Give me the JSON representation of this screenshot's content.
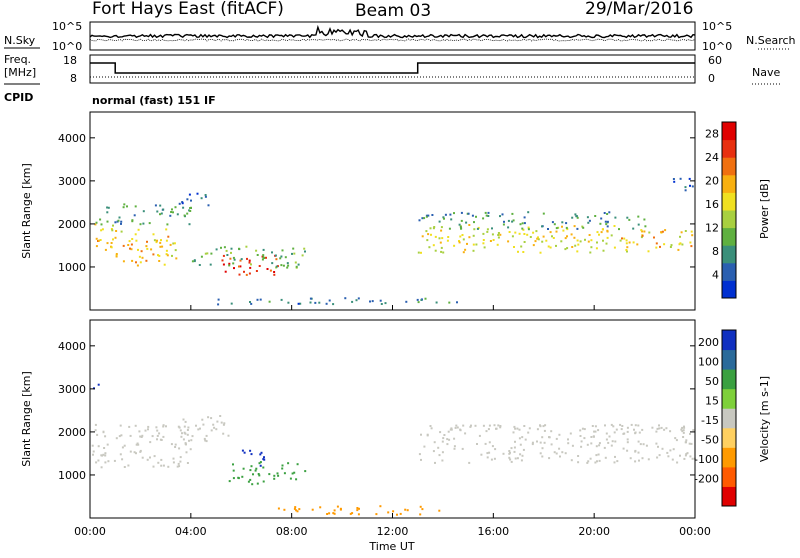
{
  "header": {
    "station": "Fort Hays East (fitACF)",
    "beam": "Beam 03",
    "date": "29/Mar/2016"
  },
  "noise_panel": {
    "left_label": "N.Sky",
    "right_label": "N.Search",
    "left_ticks": [
      "10^5",
      "10^0"
    ],
    "right_ticks": [
      "10^5",
      "10^0"
    ]
  },
  "freq_panel": {
    "left_label_1": "Freq.",
    "left_label_2": "[MHz]",
    "left_ticks": [
      "18",
      "8"
    ],
    "right_label": "Nave",
    "right_ticks": [
      "60",
      "0"
    ],
    "cpid_label": "CPID",
    "mode_text": "normal (fast) 151 IF"
  },
  "colors": {
    "power": [
      "#0030d0",
      "#2a5fb0",
      "#3a8f7a",
      "#5fb040",
      "#a8d040",
      "#f0e020",
      "#f8b010",
      "#f07010",
      "#e83010",
      "#e00000"
    ],
    "velocity": [
      "#e00000",
      "#ff5a00",
      "#ff9a00",
      "#ffd060",
      "#c8c8c0",
      "#7ed03a",
      "#3aa040",
      "#2a6a9a",
      "#1030c0"
    ]
  },
  "chart_data": [
    {
      "type": "heatmap",
      "name": "power",
      "ylabel": "Slant Range [km]",
      "yticks": [
        1000,
        2000,
        3000,
        4000
      ],
      "ylim": [
        0,
        4600
      ],
      "colorbar_label": "Power [dB]",
      "colorbar_ticks": [
        4,
        8,
        12,
        16,
        20,
        24,
        28
      ],
      "colorbar_range": [
        0,
        30
      ],
      "xticks": [
        "00:00",
        "04:00",
        "08:00",
        "12:00",
        "16:00",
        "20:00",
        "00:00"
      ],
      "regions": [
        {
          "t": [
            0.0,
            1.0
          ],
          "r": [
            1350,
            2100
          ],
          "value": 18
        },
        {
          "t": [
            1.0,
            3.5
          ],
          "r": [
            1050,
            1900
          ],
          "value": 18
        },
        {
          "t": [
            0.2,
            4.0
          ],
          "r": [
            2000,
            2500
          ],
          "value": 8
        },
        {
          "t": [
            3.5,
            5.0
          ],
          "r": [
            2450,
            2750
          ],
          "value": 6
        },
        {
          "t": [
            5.2,
            7.5
          ],
          "r": [
            800,
            1300
          ],
          "value": 26
        },
        {
          "t": [
            4.0,
            8.5
          ],
          "r": [
            1000,
            1500
          ],
          "value": 10
        },
        {
          "t": [
            13.0,
            21.0
          ],
          "r": [
            1350,
            2000
          ],
          "value": 16
        },
        {
          "t": [
            21.0,
            24.0
          ],
          "r": [
            1350,
            1900
          ],
          "value": 18
        },
        {
          "t": [
            13.0,
            22.0
          ],
          "r": [
            1900,
            2300
          ],
          "value": 8
        },
        {
          "t": [
            5.0,
            15.0
          ],
          "r": [
            150,
            300
          ],
          "value": 6
        },
        {
          "t": [
            23.0,
            24.0
          ],
          "r": [
            2800,
            3100
          ],
          "value": 6
        }
      ]
    },
    {
      "type": "heatmap",
      "name": "velocity",
      "ylabel": "Slant Range [km]",
      "yticks": [
        1000,
        2000,
        3000,
        4000
      ],
      "ylim": [
        0,
        4600
      ],
      "colorbar_label": "Velocity [m s-1]",
      "colorbar_ticks": [
        200,
        100,
        50,
        15,
        -15,
        -50,
        -100,
        -200
      ],
      "colorbar_range": [
        -250,
        250
      ],
      "xlabel": "Time UT",
      "xticks": [
        "00:00",
        "04:00",
        "08:00",
        "12:00",
        "16:00",
        "20:00",
        "00:00"
      ],
      "regions": [
        {
          "t": [
            0.0,
            4.0
          ],
          "r": [
            1200,
            2200
          ],
          "value": 0
        },
        {
          "t": [
            3.5,
            5.5
          ],
          "r": [
            1800,
            2400
          ],
          "value": 0
        },
        {
          "t": [
            5.5,
            7.0
          ],
          "r": [
            800,
            1400
          ],
          "value": 40
        },
        {
          "t": [
            6.0,
            7.0
          ],
          "r": [
            1200,
            1600
          ],
          "value": 220
        },
        {
          "t": [
            7.0,
            8.5
          ],
          "r": [
            900,
            1300
          ],
          "value": 60
        },
        {
          "t": [
            13.0,
            24.0
          ],
          "r": [
            1300,
            2200
          ],
          "value": 0
        },
        {
          "t": [
            7.0,
            14.0
          ],
          "r": [
            100,
            300
          ],
          "value": -50
        },
        {
          "t": [
            0.0,
            0.4
          ],
          "r": [
            3000,
            3200
          ],
          "value": 200
        }
      ]
    }
  ]
}
